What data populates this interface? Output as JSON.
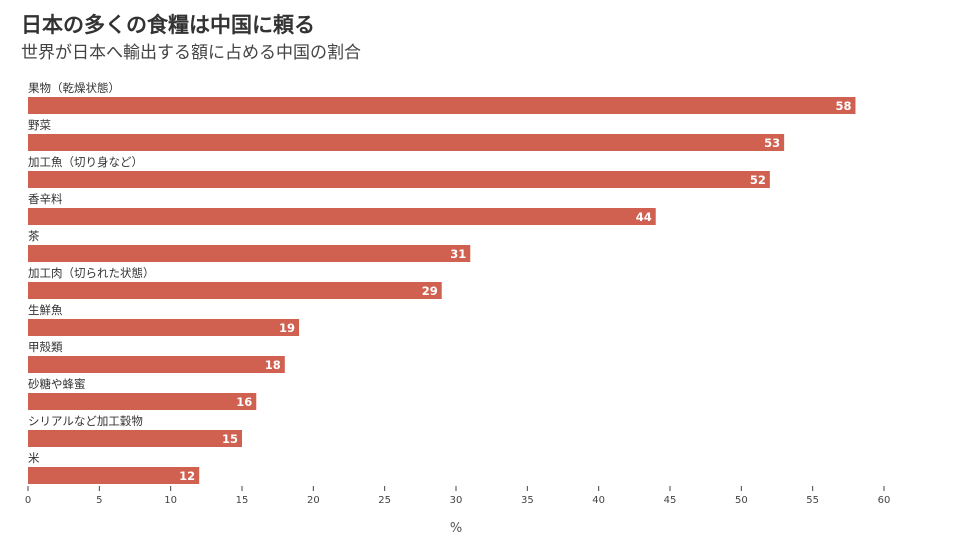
{
  "chart_data": {
    "type": "bar",
    "orientation": "horizontal",
    "title": "日本の多くの食糧は中国に頼る",
    "subtitle": "世界が日本へ輸出する額に占める中国の割合",
    "xlabel": "%",
    "ylabel": "",
    "xlim": [
      0,
      60
    ],
    "xticks": [
      0,
      5,
      10,
      15,
      20,
      25,
      30,
      35,
      40,
      45,
      50,
      55,
      60
    ],
    "categories": [
      "果物（乾燥状態）",
      "野菜",
      "加工魚（切り身など）",
      "香辛料",
      "茶",
      "加工肉（切られた状態）",
      "生鮮魚",
      "甲殻類",
      "砂糖や蜂蜜",
      "シリアルなど加工穀物",
      "米"
    ],
    "values": [
      58,
      53,
      52,
      44,
      31,
      29,
      19,
      18,
      16,
      15,
      12
    ],
    "bar_color": "#d06150",
    "grid": false,
    "legend": "none"
  }
}
